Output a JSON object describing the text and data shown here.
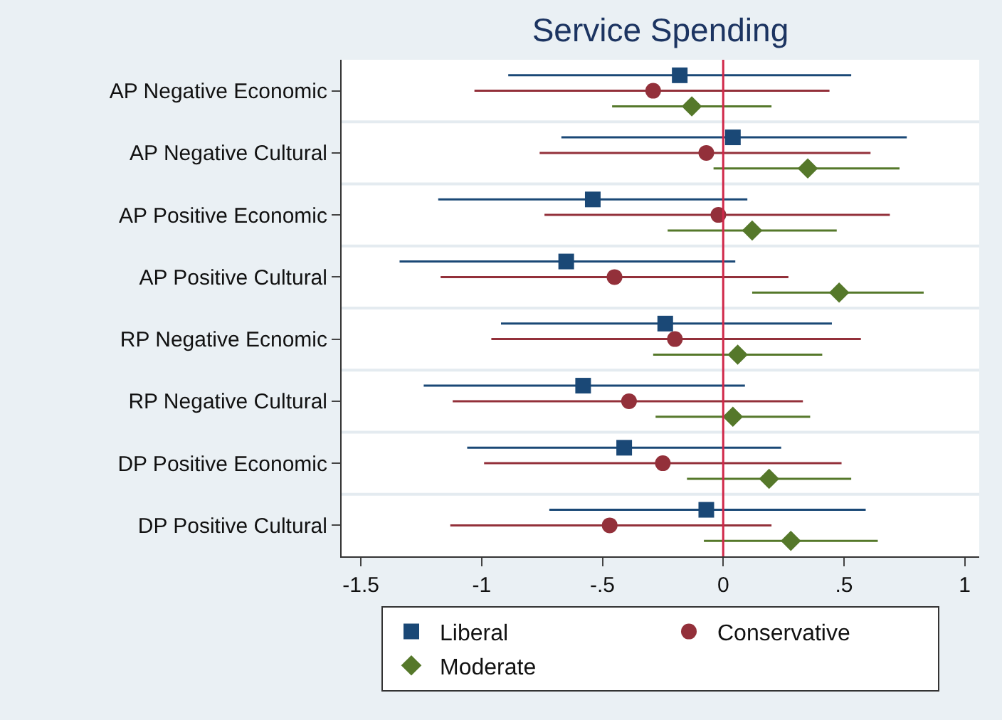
{
  "chart_data": {
    "type": "scatter",
    "orientation": "horizontal",
    "title": "Service Spending",
    "categories": [
      "AP Negative Economic",
      "AP Negative Cultural",
      "AP Positive Economic",
      "AP Positive Cultural",
      "RP Negative Ecnomic",
      "RP Negative Cultural",
      "DP Positive Economic",
      "DP Positive Cultural"
    ],
    "series": [
      {
        "name": "Liberal",
        "color": "#1a4876",
        "marker": "square",
        "values": [
          -0.18,
          0.04,
          -0.54,
          -0.65,
          -0.24,
          -0.58,
          -0.41,
          -0.07
        ],
        "errors": [
          [
            -0.89,
            0.53
          ],
          [
            -0.67,
            0.76
          ],
          [
            -1.18,
            0.1
          ],
          [
            -1.34,
            0.05
          ],
          [
            -0.92,
            0.45
          ],
          [
            -1.24,
            0.09
          ],
          [
            -1.06,
            0.24
          ],
          [
            -0.72,
            0.59
          ]
        ]
      },
      {
        "name": "Conservative",
        "color": "#93303a",
        "marker": "circle",
        "values": [
          -0.29,
          -0.07,
          -0.02,
          -0.45,
          -0.2,
          -0.39,
          -0.25,
          -0.47
        ],
        "errors": [
          [
            -1.03,
            0.44
          ],
          [
            -0.76,
            0.61
          ],
          [
            -0.74,
            0.69
          ],
          [
            -1.17,
            0.27
          ],
          [
            -0.96,
            0.57
          ],
          [
            -1.12,
            0.33
          ],
          [
            -0.99,
            0.49
          ],
          [
            -1.13,
            0.2
          ]
        ]
      },
      {
        "name": "Moderate",
        "color": "#55782a",
        "marker": "diamond",
        "values": [
          -0.13,
          0.35,
          0.12,
          0.48,
          0.06,
          0.04,
          0.19,
          0.28
        ],
        "errors": [
          [
            -0.46,
            0.2
          ],
          [
            -0.04,
            0.73
          ],
          [
            -0.23,
            0.47
          ],
          [
            0.12,
            0.83
          ],
          [
            -0.29,
            0.41
          ],
          [
            -0.28,
            0.36
          ],
          [
            -0.15,
            0.53
          ],
          [
            -0.08,
            0.64
          ]
        ]
      }
    ],
    "xlim": [
      -1.58,
      1.06
    ],
    "xticks": [
      -1.5,
      -1,
      {
        "value": -0.5,
        "label": "-.5"
      },
      0,
      {
        "value": 0.5,
        "label": ".5"
      },
      1
    ],
    "ref_lines": [
      {
        "axis": "x",
        "value": 0,
        "color": "#d0284a"
      }
    ],
    "grid": "y",
    "legend": "bottom"
  }
}
